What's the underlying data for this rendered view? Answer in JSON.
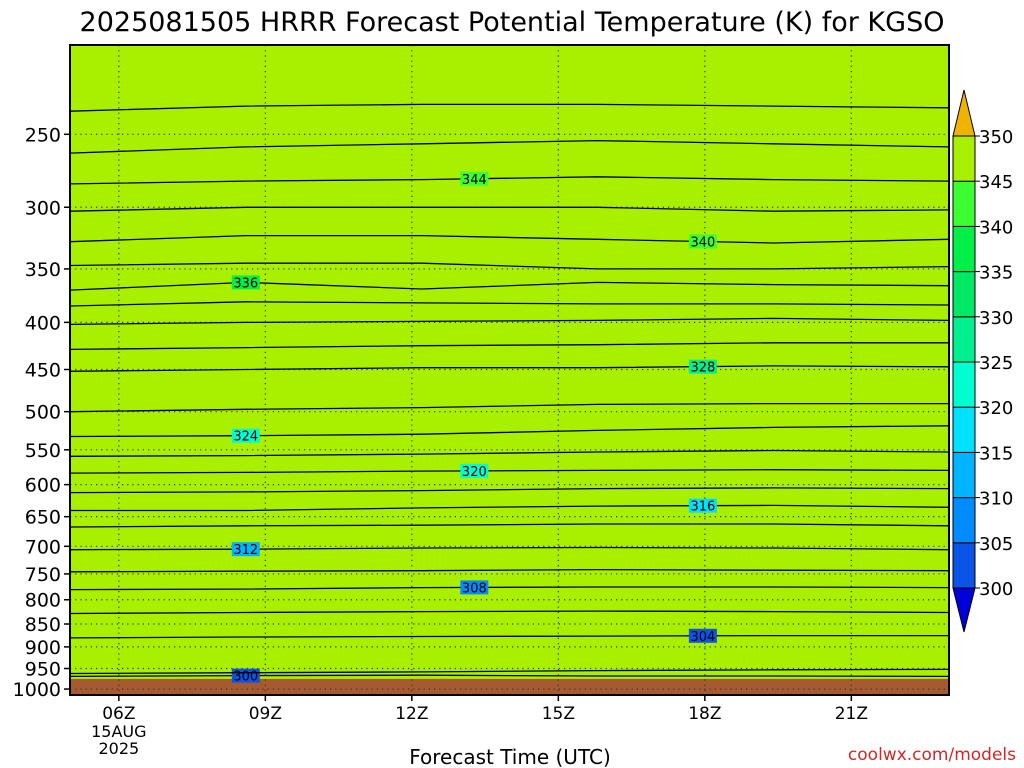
{
  "chart_data": {
    "type": "heatmap",
    "title": "2025081505 HRRR Forecast Potential Temperature (K) for KGSO",
    "xlabel": "Forecast Time (UTC)",
    "ylabel": "",
    "credit": "coolwx.com/models",
    "x_ticks": [
      {
        "value": 6,
        "label": "06Z",
        "sub": [
          "15AUG",
          "2025"
        ]
      },
      {
        "value": 9,
        "label": "09Z"
      },
      {
        "value": 12,
        "label": "12Z"
      },
      {
        "value": 15,
        "label": "15Z"
      },
      {
        "value": 18,
        "label": "18Z"
      },
      {
        "value": 21,
        "label": "21Z"
      }
    ],
    "xlim": [
      5,
      23
    ],
    "y_ticks": [
      250,
      300,
      350,
      400,
      450,
      500,
      550,
      600,
      650,
      700,
      750,
      800,
      850,
      900,
      950,
      1000
    ],
    "ylim": [
      1015,
      200
    ],
    "y_scale": "log",
    "grid": "dotted",
    "colorbar": {
      "placement": "right",
      "levels": [
        300,
        305,
        310,
        315,
        320,
        325,
        330,
        335,
        340,
        345,
        350
      ],
      "colors": [
        "#0000d8",
        "#0a54e8",
        "#008cff",
        "#00b4ff",
        "#00e0ff",
        "#00ffd0",
        "#00f090",
        "#00e864",
        "#00f04a",
        "#3cff32",
        "#a8f000",
        "#ffff00",
        "#f0b400"
      ],
      "extend": "both"
    },
    "ground_color": "#a65a32",
    "contour_interval": 2,
    "isentropes": [
      {
        "theta": 300,
        "p": [
          969,
          967,
          966,
          968,
          968,
          969
        ],
        "labeled": true
      },
      {
        "theta": 302,
        "p": [
          962,
          960,
          958,
          955,
          953,
          952
        ]
      },
      {
        "theta": 304,
        "p": [
          880,
          878,
          877,
          876,
          875,
          875
        ],
        "labeled": true
      },
      {
        "theta": 306,
        "p": [
          828,
          826,
          824,
          823,
          824,
          826
        ]
      },
      {
        "theta": 308,
        "p": [
          780,
          779,
          776,
          775,
          775,
          776
        ],
        "labeled": true
      },
      {
        "theta": 310,
        "p": [
          746,
          745,
          744,
          742,
          743,
          744
        ]
      },
      {
        "theta": 312,
        "p": [
          706,
          705,
          703,
          702,
          703,
          706
        ],
        "labeled": true
      },
      {
        "theta": 314,
        "p": [
          667,
          665,
          664,
          662,
          662,
          665
        ]
      },
      {
        "theta": 316,
        "p": [
          640,
          640,
          636,
          633,
          632,
          635
        ],
        "labeled": true
      },
      {
        "theta": 318,
        "p": [
          612,
          611,
          609,
          606,
          605,
          606
        ]
      },
      {
        "theta": 320,
        "p": [
          583,
          582,
          580,
          579,
          578,
          579
        ],
        "labeled": true
      },
      {
        "theta": 322,
        "p": [
          559,
          558,
          556,
          553,
          551,
          553
        ]
      },
      {
        "theta": 324,
        "p": [
          532,
          531,
          529,
          524,
          520,
          518
        ],
        "labeled": true
      },
      {
        "theta": 326,
        "p": [
          500,
          497,
          495,
          491,
          490,
          490
        ]
      },
      {
        "theta": 328,
        "p": [
          452,
          450,
          448,
          448,
          446,
          447
        ],
        "labeled": true
      },
      {
        "theta": 330,
        "p": [
          428,
          426,
          424,
          423,
          421,
          421
        ]
      },
      {
        "theta": 332,
        "p": [
          402,
          400,
          399,
          398,
          396,
          398
        ]
      },
      {
        "theta": 334,
        "p": [
          384,
          380,
          381,
          382,
          382,
          383
        ]
      },
      {
        "theta": 336,
        "p": [
          369,
          362,
          368,
          362,
          364,
          365
        ],
        "labeled": true
      },
      {
        "theta": 338,
        "p": [
          347,
          345,
          345,
          350,
          350,
          348
        ]
      },
      {
        "theta": 340,
        "p": [
          327,
          322,
          322,
          325,
          328,
          325
        ],
        "labeled": true
      },
      {
        "theta": 342,
        "p": [
          303,
          300,
          300,
          300,
          303,
          302
        ]
      },
      {
        "theta": 344,
        "p": [
          283,
          281,
          280,
          278,
          280,
          281
        ],
        "labeled": true
      },
      {
        "theta": 346,
        "p": [
          262,
          258,
          256,
          254,
          256,
          258
        ]
      },
      {
        "theta": 348,
        "p": [
          236,
          233,
          232,
          232,
          233,
          234
        ]
      }
    ]
  }
}
